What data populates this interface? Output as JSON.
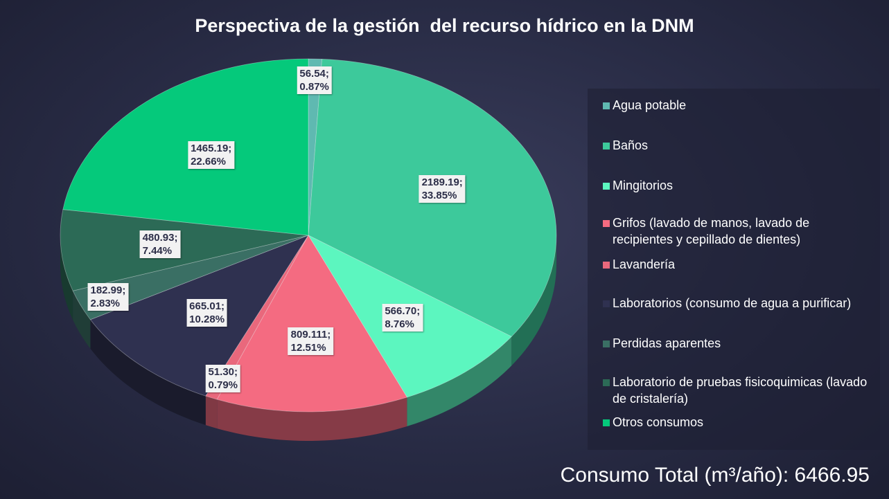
{
  "chart_data": {
    "type": "pie",
    "title": "Perspectiva de la gestión  del recurso hídrico en la DNM",
    "categories": [
      "Agua potable",
      "Baños",
      "Mingitorios",
      "Grifos (lavado de manos, lavado de recipientes y cepillado de dientes)",
      "Lavandería",
      "Laboratorios (consumo de agua a purificar)",
      "Perdidas aparentes",
      "Laboratorio de pruebas fisicoquimicas (lavado de cristalería)",
      "Otros consumos"
    ],
    "values": [
      56.54,
      2189.19,
      566.7,
      809.111,
      51.3,
      665.01,
      182.99,
      480.93,
      1465.19
    ],
    "value_labels": [
      "56.54;\n0.87%",
      "2189.19;\n33.85%",
      "566.70;\n8.76%",
      "809.111;\n12.51%",
      "51.30;\n0.79%",
      "665.01;\n10.28%",
      "182.99;\n2.83%",
      "480.93;\n7.44%",
      "1465.19;\n22.66%"
    ],
    "colors": [
      "#5fb9b1",
      "#3dc99b",
      "#5cf6bf",
      "#f46b81",
      "#e9687c",
      "#2f3150",
      "#3a6f64",
      "#2c6a56",
      "#05c97b"
    ],
    "legend": "right",
    "annotation": "Consumo Total (m³/año): 6466.95"
  }
}
